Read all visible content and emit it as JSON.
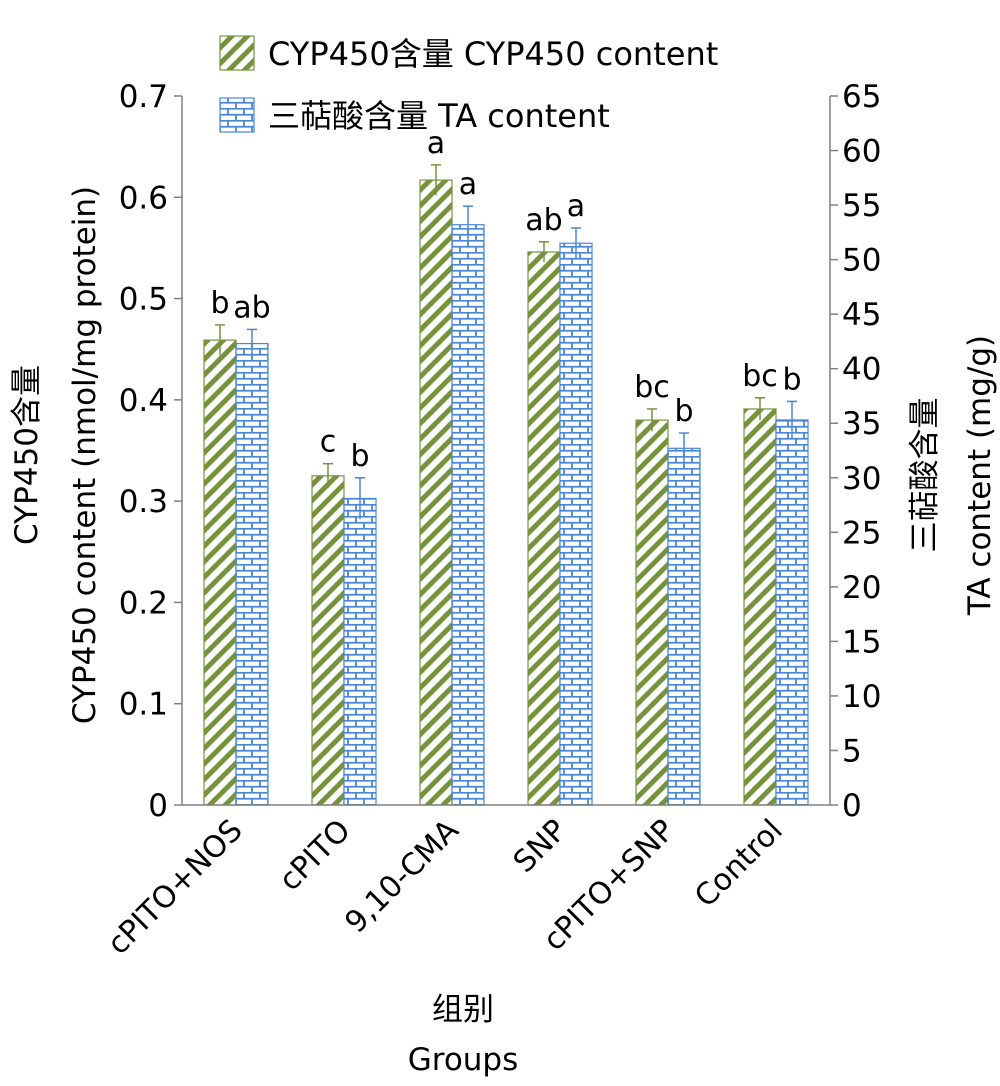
{
  "chart_data": {
    "type": "bar",
    "categories": [
      "cPITO+NOS",
      "cPITO",
      "9,10-CMA",
      "SNP",
      "cPITO+SNP",
      "Control"
    ],
    "series": [
      {
        "name": "CYP450含量 CYP450 content",
        "axis": "left",
        "values": [
          0.459,
          0.325,
          0.617,
          0.546,
          0.38,
          0.391
        ],
        "errors": [
          0.015,
          0.012,
          0.015,
          0.01,
          0.011,
          0.011
        ],
        "letters": [
          "b",
          "c",
          "a",
          "ab",
          "bc",
          "bc"
        ],
        "color": "#76933C",
        "pattern": "diagonal-stripes"
      },
      {
        "name": "三萜酸含量 TA content",
        "axis": "right",
        "values": [
          42.3,
          28.1,
          53.2,
          51.5,
          32.7,
          35.3
        ],
        "errors": [
          1.3,
          1.9,
          1.7,
          1.4,
          1.4,
          1.7
        ],
        "letters": [
          "ab",
          "b",
          "a",
          "a",
          "b",
          "b"
        ],
        "color": "#4A86D8",
        "pattern": "brick"
      }
    ],
    "left_axis": {
      "label_line1": "CYP450含量",
      "label_line2": "CYP450 content (nmol/mg protein)",
      "ylim": [
        0,
        0.7
      ],
      "ticks": [
        "0",
        "0.1",
        "0.2",
        "0.3",
        "0.4",
        "0.5",
        "0.6",
        "0.7"
      ]
    },
    "right_axis": {
      "label_line1": "三萜酸含量",
      "label_line2": "TA content (mg/g)",
      "ylim": [
        0,
        65
      ],
      "ticks": [
        "0",
        "5",
        "10",
        "15",
        "20",
        "25",
        "30",
        "35",
        "40",
        "45",
        "50",
        "55",
        "60",
        "65"
      ]
    },
    "xlabel_line1": "组别",
    "xlabel_line2": "Groups",
    "legend_placement": "top-left",
    "grid": false
  }
}
